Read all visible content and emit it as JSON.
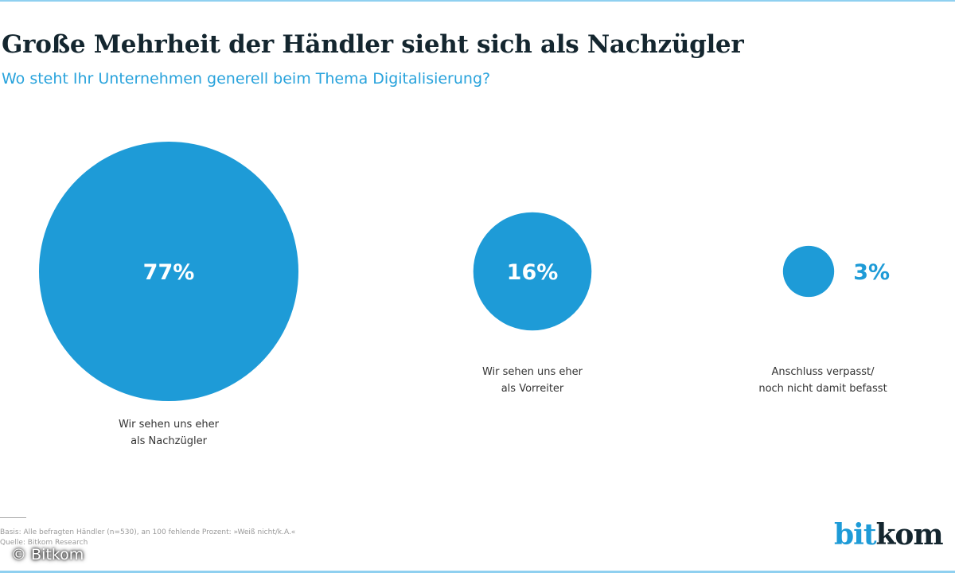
{
  "header": {
    "title": "Große Mehrheit der Händler sieht sich als Nachzügler",
    "subtitle": "Wo steht Ihr Unternehmen generell beim Thema Digitalisierung?"
  },
  "chart_data": {
    "type": "bubble",
    "categories": [
      "Wir sehen uns eher als Nachzügler",
      "Wir sehen uns eher als Vorreiter",
      "Anschluss verpasst/ noch nicht damit befasst"
    ],
    "values": [
      77,
      16,
      3
    ],
    "data_labels": [
      "77%",
      "16%",
      "3%"
    ],
    "category_lines": [
      [
        "Wir sehen uns eher",
        "als Nachzügler"
      ],
      [
        "Wir sehen uns eher",
        "als Vorreiter"
      ],
      [
        "Anschluss verpasst/",
        "noch nicht damit befasst"
      ]
    ],
    "unit": "%",
    "colors": {
      "bubble": "#1e9bd7",
      "label_inside": "#ffffff",
      "label_outside": "#1e9bd7"
    }
  },
  "footer": {
    "basis": "Basis: Alle befragten Händler (n=530), an 100 fehlende Prozent: »Weiß nicht/k.A.«",
    "source": "Quelle: Bitkom Research",
    "copyright": "© Bitkom"
  },
  "logo": {
    "part1": "bit",
    "part2": "kom"
  }
}
